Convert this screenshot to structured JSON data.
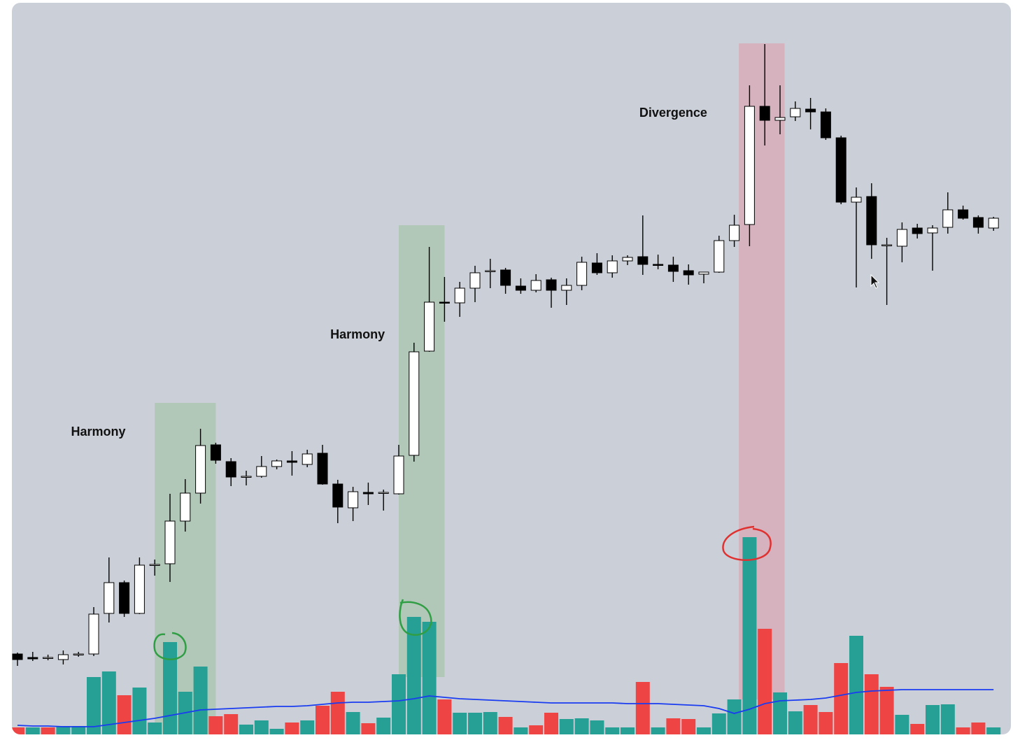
{
  "chart_data": {
    "type": "candlestick",
    "ylim": [
      0,
      1000
    ],
    "bull_color": "#ffffff",
    "bear_color": "#000000",
    "open": [
      115,
      110,
      109,
      107,
      114,
      115,
      173,
      217,
      173,
      242,
      244,
      305,
      345,
      414,
      390,
      368,
      369,
      383,
      391,
      386,
      402,
      358,
      324,
      346,
      345,
      344,
      399,
      548,
      618,
      617,
      638,
      662,
      664,
      641,
      635,
      650,
      635,
      642,
      674,
      660,
      677,
      683,
      672,
      671,
      663,
      658,
      661,
      706,
      729,
      898,
      878,
      883,
      894,
      890,
      853,
      761,
      769,
      699,
      698,
      724,
      717,
      725,
      750,
      739,
      724
    ],
    "high": [
      117,
      118,
      114,
      120,
      118,
      182,
      253,
      220,
      253,
      250,
      344,
      365,
      437,
      417,
      395,
      377,
      398,
      393,
      405,
      407,
      414,
      364,
      354,
      360,
      350,
      414,
      560,
      697,
      654,
      647,
      670,
      680,
      667,
      652,
      658,
      653,
      652,
      683,
      688,
      685,
      685,
      742,
      686,
      683,
      672,
      661,
      713,
      743,
      928,
      987,
      928,
      905,
      910,
      895,
      856,
      782,
      788,
      710,
      732,
      730,
      728,
      775,
      756,
      742,
      740
    ],
    "low": [
      98,
      105,
      106,
      100,
      111,
      112,
      160,
      168,
      172,
      227,
      218,
      290,
      330,
      387,
      355,
      356,
      367,
      379,
      370,
      382,
      357,
      302,
      305,
      328,
      320,
      343,
      390,
      547,
      590,
      597,
      618,
      638,
      630,
      630,
      632,
      610,
      614,
      635,
      657,
      653,
      671,
      657,
      665,
      647,
      643,
      645,
      660,
      697,
      698,
      842,
      858,
      877,
      865,
      850,
      758,
      639,
      680,
      614,
      675,
      709,
      663,
      716,
      736,
      716,
      720
    ],
    "close": [
      107,
      108,
      110,
      114,
      115,
      172,
      217,
      173,
      242,
      243,
      305,
      345,
      413,
      392,
      368,
      369,
      383,
      391,
      389,
      401,
      358,
      325,
      347,
      344,
      346,
      398,
      547,
      618,
      617,
      638,
      660,
      663,
      642,
      635,
      649,
      635,
      642,
      675,
      660,
      677,
      682,
      672,
      671,
      662,
      657,
      661,
      706,
      728,
      898,
      878,
      882,
      895,
      890,
      853,
      761,
      768,
      700,
      700,
      722,
      716,
      724,
      750,
      738,
      725,
      738
    ],
    "volume": {
      "values": [
        10,
        10,
        10,
        12,
        12,
        82,
        90,
        56,
        67,
        17,
        132,
        61,
        97,
        26,
        29,
        14,
        20,
        8,
        17,
        20,
        41,
        61,
        32,
        16,
        24,
        86,
        168,
        161,
        50,
        31,
        31,
        32,
        25,
        10,
        13,
        31,
        22,
        23,
        20,
        10,
        10,
        75,
        10,
        23,
        22,
        10,
        30,
        50,
        282,
        151,
        60,
        33,
        42,
        32,
        102,
        141,
        86,
        68,
        28,
        15,
        42,
        43,
        10,
        17,
        10
      ],
      "colors": [
        "#ef4444",
        "#26a095",
        "#ef4444",
        "#26a095",
        "#26a095",
        "#26a095",
        "#26a095",
        "#ef4444",
        "#26a095",
        "#26a095",
        "#26a095",
        "#26a095",
        "#26a095",
        "#ef4444",
        "#ef4444",
        "#26a095",
        "#26a095",
        "#26a095",
        "#ef4444",
        "#26a095",
        "#ef4444",
        "#ef4444",
        "#26a095",
        "#ef4444",
        "#26a095",
        "#26a095",
        "#26a095",
        "#26a095",
        "#ef4444",
        "#26a095",
        "#26a095",
        "#26a095",
        "#ef4444",
        "#26a095",
        "#ef4444",
        "#ef4444",
        "#26a095",
        "#26a095",
        "#26a095",
        "#26a095",
        "#26a095",
        "#ef4444",
        "#26a095",
        "#ef4444",
        "#ef4444",
        "#26a095",
        "#26a095",
        "#26a095",
        "#26a095",
        "#ef4444",
        "#26a095",
        "#26a095",
        "#ef4444",
        "#ef4444",
        "#ef4444",
        "#26a095",
        "#ef4444",
        "#ef4444",
        "#26a095",
        "#ef4444",
        "#26a095",
        "#26a095",
        "#ef4444",
        "#ef4444",
        "#26a095"
      ]
    },
    "moving_average": {
      "color": "#1a3cf0",
      "values": [
        13,
        12,
        12,
        11,
        11,
        11,
        14,
        17,
        20,
        23,
        27,
        31,
        35,
        36,
        37,
        38,
        39,
        40,
        40,
        41,
        43,
        45,
        46,
        46,
        47,
        48,
        51,
        55,
        53,
        51,
        50,
        49,
        48,
        47,
        46,
        45,
        45,
        45,
        45,
        45,
        44,
        44,
        44,
        43,
        42,
        41,
        37,
        30,
        36,
        44,
        48,
        49,
        50,
        52,
        56,
        60,
        62,
        63,
        64,
        64,
        64,
        64,
        64,
        64,
        64
      ]
    },
    "highlights": [
      {
        "start": 9,
        "end": 13,
        "range": [
          0,
          474
        ],
        "color": "#a8c4ac"
      },
      {
        "start": 25,
        "end": 28,
        "range": [
          82,
          728
        ],
        "color": "#a8c4ac"
      },
      {
        "start": 47.3,
        "end": 50.3,
        "range": [
          50,
          988
        ],
        "color": "#d8a8b4"
      }
    ],
    "annotations": [
      {
        "text": "Harmony",
        "x": 5.3,
        "y": 432
      },
      {
        "text": "Harmony",
        "x": 22.3,
        "y": 571
      },
      {
        "text": "Divergence",
        "x": 43,
        "y": 888
      }
    ]
  }
}
